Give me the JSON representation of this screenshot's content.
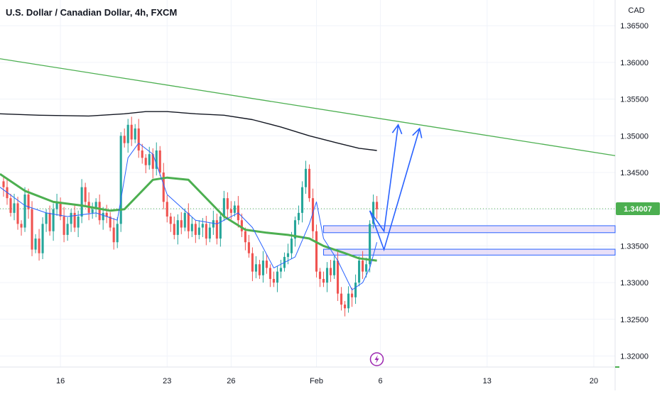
{
  "header": {
    "title": "U.S. Dollar / Canadian Dollar, 4h, FXCM"
  },
  "price_axis": {
    "currency_label": "CAD",
    "current_price_label": "1.34007"
  },
  "colors": {
    "bull": "#26a69a",
    "bear": "#ef5350",
    "trendline": "#4caf50",
    "sma_long": "#131722",
    "sma_mid": "#4caf50",
    "ema_short": "#2962ff",
    "zone_fill": "#e1d5f5",
    "zone_border": "#2962ff",
    "arrow": "#2962ff",
    "price_badge": "#4caf50",
    "event_icon": "#9c27b0"
  },
  "event_icon": "lightning-icon",
  "chart_data": {
    "type": "candlestick",
    "title": "U.S. Dollar / Canadian Dollar, 4h, FXCM",
    "xlabel": "",
    "ylabel": "CAD",
    "grid": true,
    "ylim": [
      1.3185,
      1.3685
    ],
    "y_ticks": [
      "1.32000",
      "1.32500",
      "1.33000",
      "1.33500",
      "1.34000",
      "1.34500",
      "1.35000",
      "1.35500",
      "1.36000",
      "1.36500"
    ],
    "x_ticks": [
      {
        "label": "16",
        "bar": 16
      },
      {
        "label": "23",
        "bar": 46
      },
      {
        "label": "26",
        "bar": 64
      },
      {
        "label": "Feb",
        "bar": 88
      },
      {
        "label": "6",
        "bar": 106
      },
      {
        "label": "13",
        "bar": 136
      },
      {
        "label": "20",
        "bar": 166
      }
    ],
    "xlim_bars": [
      -1,
      172
    ],
    "current_price": 1.34007,
    "ohlc_closes": [
      1.343,
      1.3415,
      1.3395,
      1.3408,
      1.338,
      1.3375,
      1.342,
      1.34,
      1.3345,
      1.336,
      1.334,
      1.338,
      1.3395,
      1.337,
      1.34,
      1.341,
      1.339,
      1.3365,
      1.338,
      1.3395,
      1.3375,
      1.339,
      1.343,
      1.341,
      1.3395,
      1.34,
      1.341,
      1.3385,
      1.3395,
      1.339,
      1.3375,
      1.3355,
      1.338,
      1.35,
      1.349,
      1.3515,
      1.3495,
      1.351,
      1.348,
      1.347,
      1.346,
      1.3475,
      1.3455,
      1.348,
      1.345,
      1.341,
      1.339,
      1.338,
      1.3365,
      1.3385,
      1.3375,
      1.3395,
      1.337,
      1.338,
      1.3365,
      1.3375,
      1.338,
      1.336,
      1.3375,
      1.3385,
      1.336,
      1.339,
      1.3415,
      1.34,
      1.3395,
      1.3405,
      1.3385,
      1.337,
      1.3355,
      1.334,
      1.3315,
      1.3325,
      1.331,
      1.333,
      1.332,
      1.3305,
      1.33,
      1.3315,
      1.332,
      1.3335,
      1.334,
      1.336,
      1.3385,
      1.3395,
      1.343,
      1.3455,
      1.3415,
      1.337,
      1.3315,
      1.3305,
      1.33,
      1.332,
      1.331,
      1.333,
      1.3285,
      1.327,
      1.3265,
      1.3285,
      1.328,
      1.33,
      1.333,
      1.3315,
      1.3325,
      1.338,
      1.341,
      1.34
    ],
    "series": [
      {
        "kind": "sma_long",
        "points": [
          [
            -1,
            1.353
          ],
          [
            10,
            1.3528
          ],
          [
            24,
            1.3527
          ],
          [
            34,
            1.353
          ],
          [
            40,
            1.3533
          ],
          [
            46,
            1.3533
          ],
          [
            54,
            1.353
          ],
          [
            62,
            1.3528
          ],
          [
            70,
            1.3522
          ],
          [
            78,
            1.3512
          ],
          [
            86,
            1.35
          ],
          [
            94,
            1.349
          ],
          [
            100,
            1.3483
          ],
          [
            105,
            1.348
          ]
        ]
      },
      {
        "kind": "sma_mid",
        "points": [
          [
            -1,
            1.3448
          ],
          [
            6,
            1.3425
          ],
          [
            14,
            1.341
          ],
          [
            22,
            1.3405
          ],
          [
            30,
            1.3398
          ],
          [
            34,
            1.34
          ],
          [
            38,
            1.342
          ],
          [
            42,
            1.344
          ],
          [
            46,
            1.3443
          ],
          [
            52,
            1.344
          ],
          [
            56,
            1.342
          ],
          [
            62,
            1.339
          ],
          [
            68,
            1.3372
          ],
          [
            74,
            1.3368
          ],
          [
            80,
            1.3365
          ],
          [
            86,
            1.336
          ],
          [
            90,
            1.335
          ],
          [
            96,
            1.334
          ],
          [
            100,
            1.3333
          ],
          [
            105,
            1.333
          ]
        ]
      },
      {
        "kind": "ema_short",
        "points": [
          [
            -1,
            1.343
          ],
          [
            6,
            1.3405
          ],
          [
            12,
            1.3395
          ],
          [
            18,
            1.339
          ],
          [
            26,
            1.3395
          ],
          [
            32,
            1.3385
          ],
          [
            35,
            1.347
          ],
          [
            38,
            1.349
          ],
          [
            42,
            1.3475
          ],
          [
            46,
            1.342
          ],
          [
            54,
            1.3385
          ],
          [
            60,
            1.338
          ],
          [
            66,
            1.3395
          ],
          [
            70,
            1.3375
          ],
          [
            76,
            1.332
          ],
          [
            82,
            1.3335
          ],
          [
            86,
            1.338
          ],
          [
            88,
            1.341
          ],
          [
            90,
            1.336
          ],
          [
            94,
            1.333
          ],
          [
            98,
            1.329
          ],
          [
            101,
            1.33
          ],
          [
            103,
            1.332
          ],
          [
            105,
            1.3355
          ]
        ]
      }
    ],
    "trendline": {
      "from": [
        -1,
        1.3605
      ],
      "to": [
        172,
        1.3473
      ]
    },
    "zones": [
      {
        "from_bar": 90,
        "to_bar": 172,
        "top": 1.33775,
        "bottom": 1.3368
      },
      {
        "from_bar": 90,
        "to_bar": 172,
        "top": 1.33455,
        "bottom": 1.33375
      }
    ],
    "projection_paths": [
      [
        [
          103,
          1.3398
        ],
        [
          107,
          1.337
        ],
        [
          111,
          1.3515
        ]
      ],
      [
        [
          103,
          1.3398
        ],
        [
          107,
          1.3345
        ],
        [
          117,
          1.351
        ]
      ]
    ]
  }
}
